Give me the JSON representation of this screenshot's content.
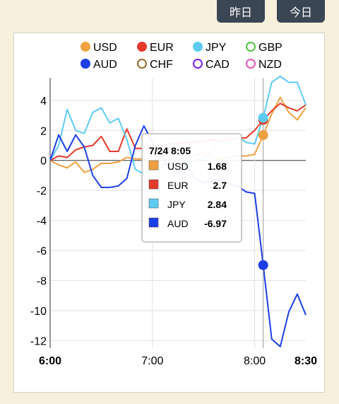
{
  "buttons": {
    "yesterday": "昨日",
    "today": "今日"
  },
  "legend": [
    {
      "name": "USD",
      "color": "#f0a040",
      "filled": true
    },
    {
      "name": "EUR",
      "color": "#e43a2c",
      "filled": true
    },
    {
      "name": "JPY",
      "color": "#5ecbf2",
      "filled": true
    },
    {
      "name": "GBP",
      "color": "#52c242",
      "filled": false
    },
    {
      "name": "AUD",
      "color": "#1c3ee6",
      "filled": true
    },
    {
      "name": "CHF",
      "color": "#9a6a2a",
      "filled": false
    },
    {
      "name": "CAD",
      "color": "#7a1ee6",
      "filled": false
    },
    {
      "name": "NZD",
      "color": "#e256b8",
      "filled": false
    }
  ],
  "tooltip": {
    "title": "7/24 8:05",
    "rows": [
      {
        "name": "USD",
        "value": "1.68",
        "color": "#f0a040"
      },
      {
        "name": "EUR",
        "value": "2.7",
        "color": "#e43a2c"
      },
      {
        "name": "JPY",
        "value": "2.84",
        "color": "#5ecbf2"
      },
      {
        "name": "AUD",
        "value": "-6.97",
        "color": "#1c3ee6"
      }
    ]
  },
  "chart_data": {
    "type": "line",
    "x_ticks": [
      "6:00",
      "7:00",
      "8:00",
      "8:30"
    ],
    "x_tick_minutes": [
      0,
      60,
      120,
      150
    ],
    "ylim": [
      -12.5,
      5.5
    ],
    "y_ticks": [
      4,
      2,
      0,
      -2,
      -4,
      -6,
      -8,
      -10,
      -12
    ],
    "grid": true,
    "legend_placement": "top",
    "crosshair_minute": 125,
    "series": [
      {
        "name": "USD",
        "color": "#f0a040",
        "x": [
          0,
          5,
          10,
          15,
          20,
          25,
          30,
          35,
          40,
          45,
          50,
          55,
          60,
          65,
          70,
          75,
          80,
          85,
          90,
          95,
          100,
          105,
          110,
          115,
          120,
          125,
          130,
          135,
          140,
          145,
          150
        ],
        "y": [
          0,
          -0.3,
          -0.5,
          -0.1,
          -0.8,
          -0.6,
          -0.2,
          -0.2,
          -0.1,
          0.2,
          0.1,
          0.1,
          -0.1,
          -0.2,
          -0.3,
          0,
          0.2,
          0.3,
          0.5,
          0.2,
          0.1,
          0.2,
          0.3,
          0.3,
          0.4,
          1.68,
          3.1,
          4.2,
          3.2,
          2.7,
          3.5
        ]
      },
      {
        "name": "EUR",
        "color": "#e43a2c",
        "x": [
          0,
          5,
          10,
          15,
          20,
          25,
          30,
          35,
          40,
          45,
          50,
          55,
          60,
          65,
          70,
          75,
          80,
          85,
          90,
          95,
          100,
          105,
          110,
          115,
          120,
          125,
          130,
          135,
          140,
          145,
          150
        ],
        "y": [
          0,
          0.3,
          0.2,
          0.7,
          0.9,
          1.0,
          1.6,
          0.6,
          0.6,
          2.1,
          0.8,
          0.8,
          0.9,
          1.0,
          1.1,
          1.1,
          1.2,
          1.2,
          1.3,
          1.4,
          1.3,
          1.4,
          1.5,
          1.5,
          2.0,
          2.7,
          3.3,
          3.8,
          3.5,
          3.3,
          3.7
        ]
      },
      {
        "name": "JPY",
        "color": "#5ecbf2",
        "x": [
          0,
          5,
          10,
          15,
          20,
          25,
          30,
          35,
          40,
          45,
          50,
          55,
          60,
          65,
          70,
          75,
          80,
          85,
          90,
          95,
          100,
          105,
          110,
          115,
          120,
          125,
          130,
          135,
          140,
          145,
          150
        ],
        "y": [
          0,
          1.0,
          3.4,
          2.0,
          1.8,
          3.2,
          3.5,
          2.5,
          2.8,
          1.4,
          -0.6,
          -0.9,
          -0.6,
          -0.4,
          -0.2,
          -0.5,
          -0.1,
          0,
          0.2,
          0.6,
          1.2,
          1.2,
          1.6,
          1.2,
          1.1,
          2.84,
          5.2,
          5.6,
          5.2,
          5.2,
          3.7
        ]
      },
      {
        "name": "AUD",
        "color": "#1c3ee6",
        "x": [
          0,
          5,
          10,
          15,
          20,
          25,
          30,
          35,
          40,
          45,
          50,
          55,
          60,
          65,
          70,
          75,
          80,
          85,
          90,
          95,
          100,
          105,
          110,
          115,
          120,
          125,
          130,
          135,
          140,
          145,
          150
        ],
        "y": [
          0,
          1.7,
          0.6,
          1.7,
          0.9,
          -1.0,
          -1.8,
          -1.8,
          -1.7,
          -1.2,
          1.0,
          2.3,
          1.2,
          0.3,
          -0.5,
          -0.8,
          -0.4,
          -1.2,
          -1.5,
          -1.4,
          -1.3,
          -1.6,
          -1.7,
          -2.1,
          -2.2,
          -6.97,
          -11.9,
          -12.4,
          -10.1,
          -8.9,
          -10.3
        ]
      }
    ]
  }
}
